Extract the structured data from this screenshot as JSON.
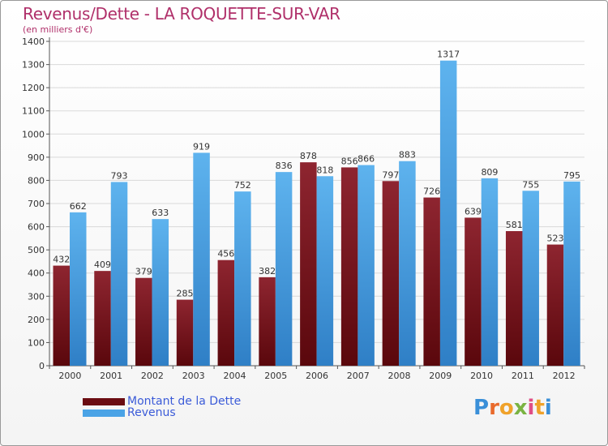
{
  "header": {
    "title": "Revenus/Dette - LA ROQUETTE-SUR-VAR",
    "unit": "(en milliers d'€)"
  },
  "chart_data": {
    "type": "bar",
    "title": "Revenus/Dette - LA ROQUETTE-SUR-VAR",
    "ylabel": "(en milliers d'€)",
    "xlabel": "",
    "ylim": [
      0,
      1400
    ],
    "ytick_step": 100,
    "yticks": [
      "0",
      "100",
      "200",
      "300",
      "400",
      "500",
      "600",
      "700",
      "800",
      "900",
      "1000",
      "1100",
      "1200",
      "1300",
      "1400"
    ],
    "categories": [
      "2000",
      "2001",
      "2002",
      "2003",
      "2004",
      "2005",
      "2006",
      "2007",
      "2008",
      "2009",
      "2010",
      "2011",
      "2012"
    ],
    "series": [
      {
        "name": "Montant de la Dette",
        "color": "#8b1d25",
        "values": [
          432,
          409,
          379,
          285,
          456,
          382,
          878,
          856,
          797,
          726,
          639,
          581,
          523
        ]
      },
      {
        "name": "Revenus",
        "color": "#4aa3e6",
        "values": [
          662,
          793,
          633,
          919,
          752,
          836,
          818,
          866,
          883,
          1317,
          809,
          755,
          795
        ]
      }
    ],
    "grid": true,
    "legend_position": "bottom-left"
  },
  "legend": {
    "items": [
      {
        "label": "Montant de la Dette",
        "color": "#6b0c12"
      },
      {
        "label": "Revenus",
        "color": "#4aa3e6"
      }
    ]
  },
  "brand": {
    "letters": [
      "P",
      "r",
      "o",
      "x",
      "i",
      "t",
      "i"
    ]
  }
}
